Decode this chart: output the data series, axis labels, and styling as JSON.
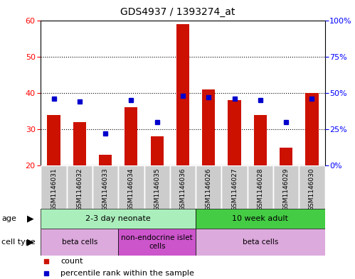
{
  "title": "GDS4937 / 1393274_at",
  "samples": [
    "GSM1146031",
    "GSM1146032",
    "GSM1146033",
    "GSM1146034",
    "GSM1146035",
    "GSM1146036",
    "GSM1146026",
    "GSM1146027",
    "GSM1146028",
    "GSM1146029",
    "GSM1146030"
  ],
  "counts": [
    34,
    32,
    23,
    36,
    28,
    59,
    41,
    38,
    34,
    25,
    40
  ],
  "percentiles": [
    46,
    44,
    22,
    45,
    30,
    48,
    47,
    46,
    45,
    30,
    46
  ],
  "ylim_left": [
    20,
    60
  ],
  "ylim_right": [
    0,
    100
  ],
  "yticks_left": [
    20,
    30,
    40,
    50,
    60
  ],
  "yticks_right": [
    0,
    25,
    50,
    75,
    100
  ],
  "ytick_labels_right": [
    "0%",
    "25%",
    "50%",
    "75%",
    "100%"
  ],
  "bar_color": "#cc1100",
  "marker_color": "#0000cc",
  "grid_color": "#000000",
  "bg_color": "#ffffff",
  "label_bg": "#cccccc",
  "age_groups": [
    {
      "label": "2-3 day neonate",
      "start": 0,
      "end": 6,
      "color": "#aaeebb"
    },
    {
      "label": "10 week adult",
      "start": 6,
      "end": 11,
      "color": "#44cc44"
    }
  ],
  "cell_type_groups": [
    {
      "label": "beta cells",
      "start": 0,
      "end": 3,
      "color": "#ddaadd"
    },
    {
      "label": "non-endocrine islet\ncells",
      "start": 3,
      "end": 6,
      "color": "#cc55cc"
    },
    {
      "label": "beta cells",
      "start": 6,
      "end": 11,
      "color": "#ddaadd"
    }
  ],
  "legend_items": [
    {
      "color": "#cc1100",
      "label": "count"
    },
    {
      "color": "#0000cc",
      "label": "percentile rank within the sample"
    }
  ],
  "bar_width": 0.5
}
